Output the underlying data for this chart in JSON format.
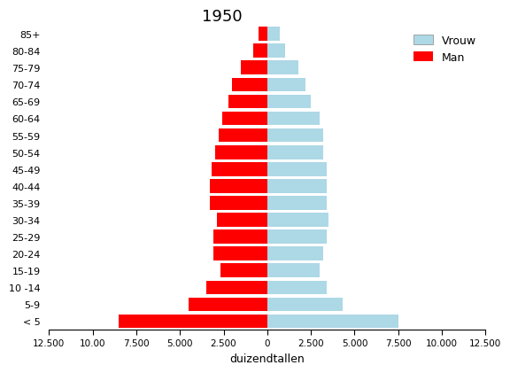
{
  "title": "1950",
  "xlabel": "duizendtallen",
  "age_groups_bottom_to_top": [
    "< 5",
    "5-9",
    "10 -14",
    "15-19",
    "20-24",
    "25-29",
    "30-34",
    "35-39",
    "40-44",
    "45-49",
    "50-54",
    "55-59",
    "60-64",
    "65-69",
    "70-74",
    "75-79",
    "80-84",
    "85+"
  ],
  "men_bottom_to_top": [
    8500,
    4500,
    3500,
    2700,
    3100,
    3100,
    2900,
    3300,
    3300,
    3200,
    3000,
    2800,
    2600,
    2200,
    2000,
    1500,
    800,
    500
  ],
  "women_bottom_to_top": [
    7500,
    4300,
    3400,
    3000,
    3200,
    3400,
    3500,
    3400,
    3400,
    3400,
    3200,
    3200,
    3000,
    2500,
    2200,
    1800,
    1000,
    700
  ],
  "man_color": "#FF0000",
  "vrouw_color": "#ADD8E6",
  "xlim": 12500,
  "xticklabels": [
    "12.500",
    "10.00",
    "7.500",
    "5.000",
    "2.500",
    "0",
    "2.500",
    "5.000",
    "7.500",
    "10.000",
    "12.500"
  ],
  "background_color": "#ffffff",
  "legend_vrouw": "Vrouw",
  "legend_man": "Man"
}
